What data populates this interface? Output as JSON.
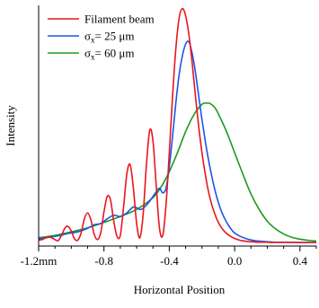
{
  "chart_data": {
    "type": "line",
    "xlabel": "Horizontal Position",
    "ylabel": "Intensity",
    "xlim": [
      -1.2,
      0.5
    ],
    "ylim": [
      0,
      1.0
    ],
    "x_ticks": [
      {
        "value": -1.2,
        "label": "-1.2mm"
      },
      {
        "value": -0.8,
        "label": "-0.8"
      },
      {
        "value": -0.4,
        "label": "-0.4"
      },
      {
        "value": 0.0,
        "label": "0.0"
      },
      {
        "value": 0.4,
        "label": "0.4"
      }
    ],
    "x_minor_step": 0.1,
    "grid": false,
    "legend": "top-left",
    "series": [
      {
        "name": "Filament beam",
        "color": "#e8161c",
        "x": [
          -1.2,
          -1.18,
          -1.16,
          -1.14,
          -1.12,
          -1.1,
          -1.08,
          -1.06,
          -1.04,
          -1.02,
          -1.0,
          -0.98,
          -0.96,
          -0.94,
          -0.92,
          -0.9,
          -0.88,
          -0.86,
          -0.84,
          -0.82,
          -0.8,
          -0.78,
          -0.76,
          -0.74,
          -0.72,
          -0.7,
          -0.68,
          -0.66,
          -0.64,
          -0.62,
          -0.6,
          -0.58,
          -0.56,
          -0.54,
          -0.52,
          -0.5,
          -0.48,
          -0.46,
          -0.44,
          -0.42,
          -0.4,
          -0.38,
          -0.36,
          -0.34,
          -0.32,
          -0.3,
          -0.28,
          -0.26,
          -0.24,
          -0.22,
          -0.2,
          -0.18,
          -0.16,
          -0.14,
          -0.12,
          -0.1,
          -0.08,
          -0.06,
          -0.04,
          -0.02,
          0.0,
          0.02,
          0.04,
          0.06,
          0.08,
          0.1,
          0.12,
          0.14,
          0.16,
          0.18,
          0.2,
          0.22,
          0.24,
          0.26,
          0.28,
          0.3,
          0.32,
          0.34,
          0.36,
          0.38,
          0.4,
          0.42,
          0.44,
          0.46,
          0.48,
          0.5
        ],
        "y": [
          0.01,
          0.012,
          0.018,
          0.022,
          0.02,
          0.012,
          0.008,
          0.03,
          0.06,
          0.068,
          0.048,
          0.015,
          0.01,
          0.04,
          0.1,
          0.125,
          0.095,
          0.035,
          0.012,
          0.04,
          0.13,
          0.195,
          0.18,
          0.09,
          0.025,
          0.03,
          0.15,
          0.29,
          0.33,
          0.23,
          0.08,
          0.02,
          0.12,
          0.33,
          0.475,
          0.43,
          0.24,
          0.06,
          0.03,
          0.16,
          0.38,
          0.62,
          0.82,
          0.95,
          0.99,
          0.96,
          0.88,
          0.76,
          0.62,
          0.49,
          0.38,
          0.29,
          0.215,
          0.16,
          0.118,
          0.085,
          0.062,
          0.045,
          0.033,
          0.024,
          0.017,
          0.012,
          0.008,
          0.006,
          0.004,
          0.003,
          0.002,
          0.001,
          0.001,
          0.001,
          0.001,
          0.0,
          0.0,
          0.0,
          0.0,
          0.0,
          0.0,
          0.0,
          0.0,
          0.0,
          0.0,
          0.0,
          0.0,
          0.0,
          0.0,
          0.0
        ]
      },
      {
        "name": "σx= 25 μm",
        "color": "#1a56e8",
        "x": [
          -1.2,
          -1.14,
          -1.08,
          -1.02,
          -0.96,
          -0.9,
          -0.86,
          -0.82,
          -0.78,
          -0.74,
          -0.7,
          -0.66,
          -0.62,
          -0.58,
          -0.56,
          -0.52,
          -0.48,
          -0.46,
          -0.44,
          -0.42,
          -0.4,
          -0.38,
          -0.36,
          -0.34,
          -0.32,
          -0.3,
          -0.28,
          -0.26,
          -0.24,
          -0.22,
          -0.2,
          -0.18,
          -0.16,
          -0.14,
          -0.12,
          -0.1,
          -0.08,
          -0.06,
          -0.04,
          -0.02,
          0.0,
          0.04,
          0.08,
          0.12,
          0.16,
          0.2,
          0.26,
          0.32,
          0.4,
          0.5
        ],
        "y": [
          0.015,
          0.022,
          0.028,
          0.038,
          0.045,
          0.06,
          0.075,
          0.08,
          0.1,
          0.115,
          0.11,
          0.125,
          0.15,
          0.14,
          0.145,
          0.175,
          0.215,
          0.23,
          0.21,
          0.23,
          0.32,
          0.45,
          0.59,
          0.71,
          0.79,
          0.84,
          0.85,
          0.8,
          0.72,
          0.62,
          0.52,
          0.43,
          0.35,
          0.28,
          0.22,
          0.17,
          0.13,
          0.1,
          0.075,
          0.055,
          0.04,
          0.024,
          0.014,
          0.008,
          0.005,
          0.003,
          0.001,
          0.001,
          0.0,
          0.0
        ]
      },
      {
        "name": "σx= 60 μm",
        "color": "#1d9a1d",
        "x": [
          -1.2,
          -1.1,
          -1.0,
          -0.9,
          -0.8,
          -0.7,
          -0.6,
          -0.5,
          -0.45,
          -0.4,
          -0.35,
          -0.3,
          -0.25,
          -0.2,
          -0.17,
          -0.15,
          -0.12,
          -0.1,
          -0.05,
          0.0,
          0.05,
          0.1,
          0.15,
          0.2,
          0.25,
          0.3,
          0.35,
          0.4,
          0.45,
          0.5
        ],
        "y": [
          0.02,
          0.03,
          0.045,
          0.062,
          0.085,
          0.11,
          0.14,
          0.19,
          0.235,
          0.3,
          0.38,
          0.47,
          0.54,
          0.585,
          0.59,
          0.588,
          0.57,
          0.545,
          0.47,
          0.38,
          0.29,
          0.205,
          0.14,
          0.09,
          0.058,
          0.036,
          0.022,
          0.014,
          0.009,
          0.006
        ]
      }
    ]
  }
}
